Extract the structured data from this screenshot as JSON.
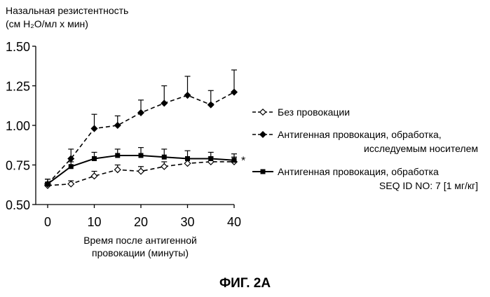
{
  "chart_data": {
    "type": "line",
    "ylabel_line1": "Назальная резистентность",
    "ylabel_line2": "(см H₂O/мл х мин)",
    "xlabel_line1": "Время после антигенной",
    "xlabel_line2": "провокации (минуты)",
    "figure_caption": "ФИГ. 2А",
    "xlim": [
      0,
      40
    ],
    "ylim": [
      0.5,
      1.5
    ],
    "x_ticks": [
      "0",
      "10",
      "20",
      "30",
      "40"
    ],
    "y_ticks": [
      "0.50",
      "0.75",
      "1.00",
      "1.25",
      "1.50"
    ],
    "x": [
      0,
      5,
      10,
      15,
      20,
      25,
      30,
      35,
      40
    ],
    "series": [
      {
        "name": "Без провокации",
        "marker": "open-diamond",
        "dash": "dashed",
        "values": [
          0.62,
          0.63,
          0.68,
          0.72,
          0.71,
          0.74,
          0.76,
          0.77,
          0.77
        ],
        "errors": [
          0.02,
          0.02,
          0.03,
          0.03,
          0.03,
          0.03,
          0.03,
          0.03,
          0.03
        ]
      },
      {
        "name_line1": "Антигенная провокация, обработка,",
        "name_line2": "исследуемым носителем",
        "marker": "filled-diamond",
        "dash": "dashed",
        "values": [
          0.63,
          0.79,
          0.98,
          1.0,
          1.08,
          1.14,
          1.19,
          1.13,
          1.21
        ],
        "errors": [
          0.03,
          0.06,
          0.09,
          0.06,
          0.08,
          0.11,
          0.12,
          0.09,
          0.14
        ]
      },
      {
        "name_line1": "Антигенная провокация, обработка",
        "name_line2": "SEQ ID NO: 7 [1 мг/кг]",
        "marker": "filled-square",
        "dash": "solid",
        "values": [
          0.63,
          0.74,
          0.79,
          0.81,
          0.81,
          0.8,
          0.79,
          0.79,
          0.78
        ],
        "errors": [
          0.03,
          0.03,
          0.04,
          0.04,
          0.05,
          0.05,
          0.05,
          0.04,
          0.04
        ]
      }
    ],
    "annotation": "*"
  }
}
